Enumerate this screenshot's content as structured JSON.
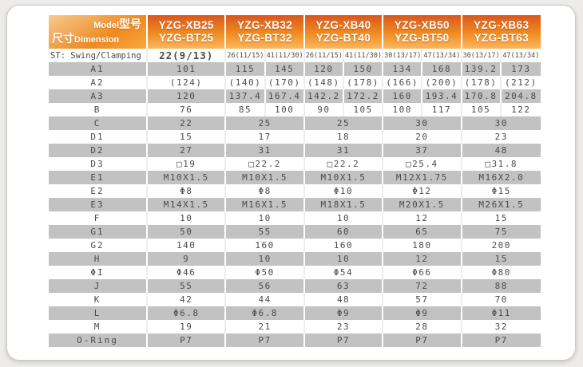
{
  "colors": {
    "page_bg": "#edecea",
    "card_bg": "#ffffff",
    "card_border": "#ccc9c5",
    "hdr_top": "#d9571e",
    "hdr_mid": "#ee8a20",
    "hdr_bot": "#fbb75e",
    "corner_top": "#f8c991",
    "corner_bot": "#f6a93d",
    "band": "#c2c2c2",
    "text": "#4b4b4b"
  },
  "table": {
    "corner": {
      "model_en": "Model",
      "model_cn": "型号",
      "dim_cn": "尺寸",
      "dim_en": "Dimension"
    },
    "header": {
      "models": [
        {
          "line1": "YZG-XB25",
          "line2": "YZG-BT25"
        },
        {
          "line1": "YZG-XB32",
          "line2": "YZG-BT32"
        },
        {
          "line1": "YZG-XB40",
          "line2": "YZG-BT40"
        },
        {
          "line1": "YZG-XB50",
          "line2": "YZG-BT50"
        },
        {
          "line1": "YZG-XB63",
          "line2": "YZG-BT63"
        }
      ]
    },
    "rows": [
      {
        "label": "ST: Swing/Clamping",
        "variant": "st",
        "shade": false,
        "cells": [
          [
            "22(9/13)"
          ],
          [
            "26(11/15)",
            "41(11/30)"
          ],
          [
            "26(11/15)",
            "41(11/30)"
          ],
          [
            "30(13/17)",
            "47(13/34)"
          ],
          [
            "30(13/17)",
            "47(13/34)"
          ]
        ]
      },
      {
        "label": "A1",
        "shade": true,
        "cells": [
          [
            "101"
          ],
          [
            "115",
            "145"
          ],
          [
            "120",
            "150"
          ],
          [
            "134",
            "168"
          ],
          [
            "139.2",
            "173"
          ]
        ]
      },
      {
        "label": "A2",
        "shade": false,
        "cells": [
          [
            "(124)"
          ],
          [
            "(140)",
            "(170)"
          ],
          [
            "(148)",
            "(178)"
          ],
          [
            "(166)",
            "(200)"
          ],
          [
            "(178)",
            "(212)"
          ]
        ]
      },
      {
        "label": "A3",
        "shade": true,
        "cells": [
          [
            "120"
          ],
          [
            "137.4",
            "167.4"
          ],
          [
            "142.2",
            "172.2"
          ],
          [
            "160",
            "193.4"
          ],
          [
            "170.8",
            "204.8"
          ]
        ]
      },
      {
        "label": "B",
        "shade": false,
        "cells": [
          [
            "76"
          ],
          [
            "85",
            "100"
          ],
          [
            "90",
            "105"
          ],
          [
            "100",
            "117"
          ],
          [
            "105",
            "122"
          ]
        ]
      },
      {
        "label": "C",
        "shade": true,
        "cells": [
          [
            "22"
          ],
          [
            "25"
          ],
          [
            "25"
          ],
          [
            "30"
          ],
          [
            "30"
          ]
        ]
      },
      {
        "label": "D1",
        "shade": false,
        "cells": [
          [
            "15"
          ],
          [
            "17"
          ],
          [
            "18"
          ],
          [
            "20"
          ],
          [
            "23"
          ]
        ]
      },
      {
        "label": "D2",
        "shade": true,
        "cells": [
          [
            "27"
          ],
          [
            "31"
          ],
          [
            "31"
          ],
          [
            "37"
          ],
          [
            "48"
          ]
        ]
      },
      {
        "label": "D3",
        "shade": false,
        "cells": [
          [
            "□19"
          ],
          [
            "□22.2"
          ],
          [
            "□22.2"
          ],
          [
            "□25.4"
          ],
          [
            "□31.8"
          ]
        ]
      },
      {
        "label": "E1",
        "shade": true,
        "cells": [
          [
            "M10X1.5"
          ],
          [
            "M10X1.5"
          ],
          [
            "M10X1.5"
          ],
          [
            "M12X1.75"
          ],
          [
            "M16X2.0"
          ]
        ]
      },
      {
        "label": "E2",
        "shade": false,
        "cells": [
          [
            "Φ8"
          ],
          [
            "Φ8"
          ],
          [
            "Φ10"
          ],
          [
            "Φ12"
          ],
          [
            "Φ15"
          ]
        ]
      },
      {
        "label": "E3",
        "shade": true,
        "cells": [
          [
            "M14X1.5"
          ],
          [
            "M16X1.5"
          ],
          [
            "M18X1.5"
          ],
          [
            "M20X1.5"
          ],
          [
            "M26X1.5"
          ]
        ]
      },
      {
        "label": "F",
        "shade": false,
        "cells": [
          [
            "10"
          ],
          [
            "10"
          ],
          [
            "10"
          ],
          [
            "12"
          ],
          [
            "15"
          ]
        ]
      },
      {
        "label": "G1",
        "shade": true,
        "cells": [
          [
            "50"
          ],
          [
            "55"
          ],
          [
            "60"
          ],
          [
            "65"
          ],
          [
            "75"
          ]
        ]
      },
      {
        "label": "G2",
        "shade": false,
        "cells": [
          [
            "140"
          ],
          [
            "160"
          ],
          [
            "160"
          ],
          [
            "180"
          ],
          [
            "200"
          ]
        ]
      },
      {
        "label": "H",
        "shade": true,
        "cells": [
          [
            "9"
          ],
          [
            "10"
          ],
          [
            "10"
          ],
          [
            "12"
          ],
          [
            "15"
          ]
        ]
      },
      {
        "label": "ΦI",
        "shade": false,
        "cells": [
          [
            "Φ46"
          ],
          [
            "Φ50"
          ],
          [
            "Φ54"
          ],
          [
            "Φ66"
          ],
          [
            "Φ80"
          ]
        ]
      },
      {
        "label": "J",
        "shade": true,
        "cells": [
          [
            "55"
          ],
          [
            "56"
          ],
          [
            "63"
          ],
          [
            "72"
          ],
          [
            "88"
          ]
        ]
      },
      {
        "label": "K",
        "shade": false,
        "cells": [
          [
            "42"
          ],
          [
            "44"
          ],
          [
            "48"
          ],
          [
            "57"
          ],
          [
            "70"
          ]
        ]
      },
      {
        "label": "L",
        "shade": true,
        "cells": [
          [
            "Φ6.8"
          ],
          [
            "Φ6.8"
          ],
          [
            "Φ9"
          ],
          [
            "Φ9"
          ],
          [
            "Φ11"
          ]
        ]
      },
      {
        "label": "M",
        "shade": false,
        "cells": [
          [
            "19"
          ],
          [
            "21"
          ],
          [
            "23"
          ],
          [
            "28"
          ],
          [
            "32"
          ]
        ]
      },
      {
        "label": "O-Ring",
        "shade": true,
        "cells": [
          [
            "P7"
          ],
          [
            "P7"
          ],
          [
            "P7"
          ],
          [
            "P7"
          ],
          [
            "P7"
          ]
        ]
      }
    ]
  }
}
